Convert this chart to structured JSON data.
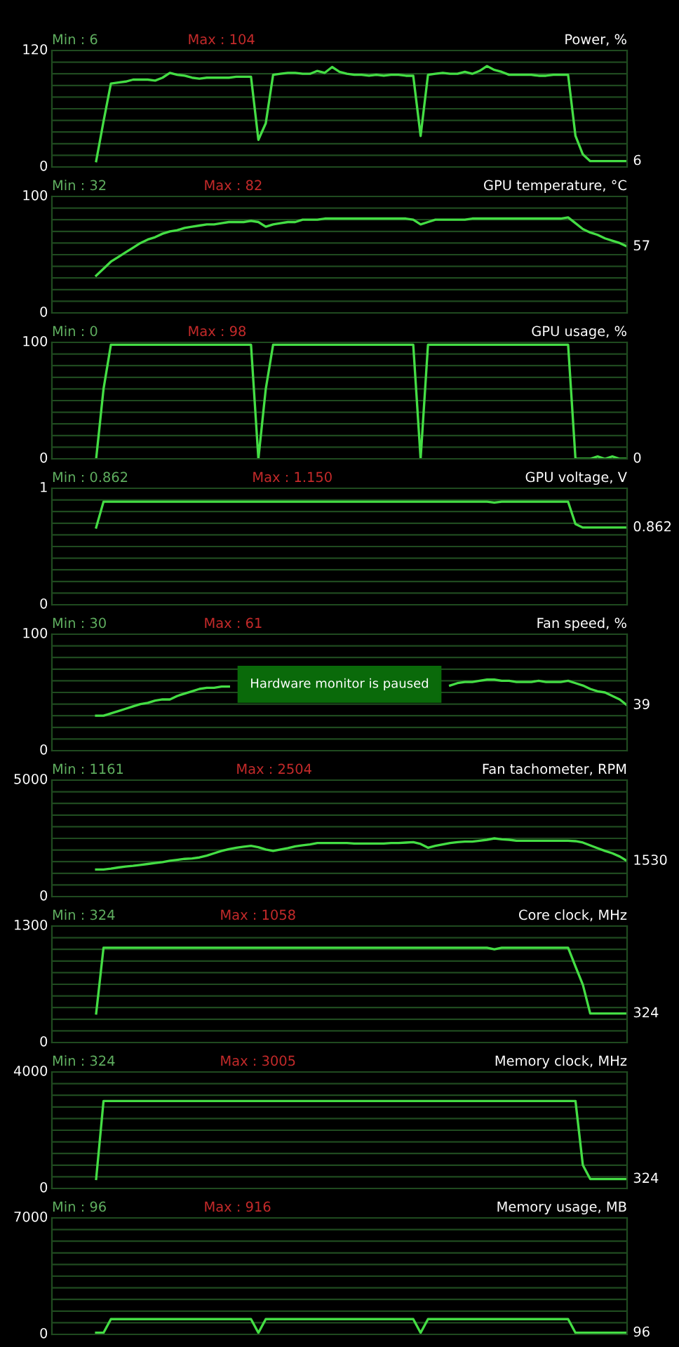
{
  "chart_data": [
    {
      "type": "line",
      "title": "Power, %",
      "tick_labels": "y",
      "grid": true,
      "categories": [
        null,
        null,
        null,
        null,
        null,
        null,
        null,
        null,
        null,
        null,
        null,
        null,
        null,
        null,
        null,
        null,
        null,
        null,
        null,
        null,
        null,
        null,
        null,
        null,
        null,
        null,
        null,
        null,
        null,
        null,
        null,
        null,
        null,
        null,
        null,
        null,
        null,
        null,
        null,
        null,
        null,
        null,
        null,
        null,
        null,
        null,
        null,
        null,
        null,
        null,
        null,
        null,
        null,
        null,
        null,
        null,
        null,
        null,
        null,
        null,
        null,
        null,
        null,
        null,
        null,
        null,
        null,
        null,
        null,
        null,
        null,
        null,
        null,
        null,
        null,
        null,
        null,
        null,
        null
      ],
      "series": [
        {
          "color": "#44dd44",
          "values": [
            null,
            null,
            null,
            null,
            null,
            null,
            6,
            47,
            86,
            87,
            88,
            90,
            90,
            90,
            89,
            92,
            97,
            95,
            94,
            92,
            91,
            92,
            92,
            92,
            92,
            93,
            93,
            93,
            28,
            45,
            95,
            96,
            97,
            97,
            96,
            96,
            99,
            97,
            103,
            98,
            96,
            95,
            95,
            94,
            95,
            94,
            95,
            95,
            94,
            94,
            32,
            95,
            96,
            97,
            96,
            96,
            98,
            96,
            99,
            104,
            100,
            98,
            95,
            95,
            95,
            95,
            94,
            94,
            95,
            95,
            95,
            32,
            13,
            6,
            6,
            6,
            6,
            6,
            6
          ]
        }
      ],
      "ylim": [
        0,
        120
      ],
      "yticks": [
        0,
        {
          "value": 12,
          "label": null
        },
        {
          "value": 24,
          "label": null
        },
        {
          "value": 36,
          "label": null
        },
        {
          "value": 48,
          "label": null
        },
        {
          "value": 60,
          "label": null
        },
        {
          "value": 72,
          "label": null
        },
        {
          "value": 84,
          "label": null
        },
        {
          "value": 96,
          "label": null
        },
        {
          "value": 108,
          "label": null
        },
        120
      ],
      "annotations": [
        "Min : 6",
        "Max : 104",
        "6"
      ]
    },
    {
      "type": "line",
      "title": "GPU temperature, °C",
      "tick_labels": "y",
      "grid": true,
      "categories": [
        null,
        null,
        null,
        null,
        null,
        null,
        null,
        null,
        null,
        null,
        null,
        null,
        null,
        null,
        null,
        null,
        null,
        null,
        null,
        null,
        null,
        null,
        null,
        null,
        null,
        null,
        null,
        null,
        null,
        null,
        null,
        null,
        null,
        null,
        null,
        null,
        null,
        null,
        null,
        null,
        null,
        null,
        null,
        null,
        null,
        null,
        null,
        null,
        null,
        null,
        null,
        null,
        null,
        null,
        null,
        null,
        null,
        null,
        null,
        null,
        null,
        null,
        null,
        null,
        null,
        null,
        null,
        null,
        null,
        null,
        null,
        null,
        null,
        null,
        null,
        null,
        null,
        null,
        null
      ],
      "series": [
        {
          "color": "#44dd44",
          "values": [
            null,
            null,
            null,
            null,
            null,
            null,
            32,
            38,
            44,
            48,
            52,
            56,
            60,
            63,
            65,
            68,
            70,
            71,
            73,
            74,
            75,
            76,
            76,
            77,
            78,
            78,
            78,
            79,
            78,
            74,
            76,
            77,
            78,
            78,
            80,
            80,
            80,
            81,
            81,
            81,
            81,
            81,
            81,
            81,
            81,
            81,
            81,
            81,
            81,
            80,
            76,
            78,
            80,
            80,
            80,
            80,
            80,
            81,
            81,
            81,
            81,
            81,
            81,
            81,
            81,
            81,
            81,
            81,
            81,
            81,
            82,
            77,
            72,
            69,
            67,
            64,
            62,
            60,
            57
          ]
        }
      ],
      "ylim": [
        0,
        100
      ],
      "yticks": [
        0,
        {
          "value": 10,
          "label": null
        },
        {
          "value": 20,
          "label": null
        },
        {
          "value": 30,
          "label": null
        },
        {
          "value": 40,
          "label": null
        },
        {
          "value": 50,
          "label": null
        },
        {
          "value": 60,
          "label": null
        },
        {
          "value": 70,
          "label": null
        },
        {
          "value": 80,
          "label": null
        },
        {
          "value": 90,
          "label": null
        },
        100
      ],
      "annotations": [
        "Min : 32",
        "Max : 82",
        "57"
      ]
    },
    {
      "type": "line",
      "title": "GPU usage, %",
      "tick_labels": "y",
      "grid": true,
      "categories": [
        null,
        null,
        null,
        null,
        null,
        null,
        null,
        null,
        null,
        null,
        null,
        null,
        null,
        null,
        null,
        null,
        null,
        null,
        null,
        null,
        null,
        null,
        null,
        null,
        null,
        null,
        null,
        null,
        null,
        null,
        null,
        null,
        null,
        null,
        null,
        null,
        null,
        null,
        null,
        null,
        null,
        null,
        null,
        null,
        null,
        null,
        null,
        null,
        null,
        null,
        null,
        null,
        null,
        null,
        null,
        null,
        null,
        null,
        null,
        null,
        null,
        null,
        null,
        null,
        null,
        null,
        null,
        null,
        null,
        null,
        null,
        null,
        null,
        null,
        null,
        null,
        null,
        null,
        null
      ],
      "series": [
        {
          "color": "#44dd44",
          "values": [
            null,
            null,
            null,
            null,
            null,
            null,
            0,
            60,
            98,
            98,
            98,
            98,
            98,
            98,
            98,
            98,
            98,
            98,
            98,
            98,
            98,
            98,
            98,
            98,
            98,
            98,
            98,
            98,
            0,
            60,
            98,
            98,
            98,
            98,
            98,
            98,
            98,
            98,
            98,
            98,
            98,
            98,
            98,
            98,
            98,
            98,
            98,
            98,
            98,
            98,
            0,
            98,
            98,
            98,
            98,
            98,
            98,
            98,
            98,
            98,
            98,
            98,
            98,
            98,
            98,
            98,
            98,
            98,
            98,
            98,
            98,
            0,
            0,
            0,
            2,
            0,
            2,
            0,
            0
          ]
        }
      ],
      "ylim": [
        0,
        100
      ],
      "yticks": [
        0,
        {
          "value": 10,
          "label": null
        },
        {
          "value": 20,
          "label": null
        },
        {
          "value": 30,
          "label": null
        },
        {
          "value": 40,
          "label": null
        },
        {
          "value": 50,
          "label": null
        },
        {
          "value": 60,
          "label": null
        },
        {
          "value": 70,
          "label": null
        },
        {
          "value": 80,
          "label": null
        },
        {
          "value": 90,
          "label": null
        },
        100
      ],
      "annotations": [
        "Min : 0",
        "Max : 98",
        "0"
      ]
    },
    {
      "type": "line",
      "title": "GPU voltage, V",
      "tick_labels": "y",
      "grid": true,
      "categories": [
        null,
        null,
        null,
        null,
        null,
        null,
        null,
        null,
        null,
        null,
        null,
        null,
        null,
        null,
        null,
        null,
        null,
        null,
        null,
        null,
        null,
        null,
        null,
        null,
        null,
        null,
        null,
        null,
        null,
        null,
        null,
        null,
        null,
        null,
        null,
        null,
        null,
        null,
        null,
        null,
        null,
        null,
        null,
        null,
        null,
        null,
        null,
        null,
        null,
        null,
        null,
        null,
        null,
        null,
        null,
        null,
        null,
        null,
        null,
        null,
        null,
        null,
        null,
        null,
        null,
        null,
        null,
        null,
        null,
        null,
        null,
        null,
        null,
        null,
        null,
        null,
        null,
        null,
        null
      ],
      "series": [
        {
          "color": "#44dd44",
          "values": [
            null,
            null,
            null,
            null,
            null,
            null,
            0.862,
            1.15,
            1.15,
            1.15,
            1.15,
            1.15,
            1.15,
            1.15,
            1.15,
            1.15,
            1.15,
            1.15,
            1.15,
            1.15,
            1.15,
            1.15,
            1.15,
            1.15,
            1.15,
            1.15,
            1.15,
            1.15,
            1.15,
            1.15,
            1.15,
            1.15,
            1.15,
            1.15,
            1.15,
            1.15,
            1.15,
            1.15,
            1.15,
            1.15,
            1.15,
            1.15,
            1.15,
            1.15,
            1.15,
            1.15,
            1.15,
            1.15,
            1.15,
            1.15,
            1.15,
            1.15,
            1.15,
            1.15,
            1.15,
            1.15,
            1.15,
            1.15,
            1.15,
            1.15,
            1.14,
            1.15,
            1.15,
            1.15,
            1.15,
            1.15,
            1.15,
            1.15,
            1.15,
            1.15,
            1.15,
            0.9,
            0.862,
            0.862,
            0.862,
            0.862,
            0.862,
            0.862,
            0.862
          ]
        }
      ],
      "ylim": [
        0,
        1.3
      ],
      "yticks": [
        0,
        {
          "value": 0.13,
          "label": null
        },
        {
          "value": 0.26,
          "label": null
        },
        {
          "value": 0.39,
          "label": null
        },
        {
          "value": 0.52,
          "label": null
        },
        {
          "value": 0.65,
          "label": null
        },
        {
          "value": 0.78,
          "label": null
        },
        {
          "value": 0.91,
          "label": null
        },
        {
          "value": 1.04,
          "label": null
        },
        {
          "value": 1.17,
          "label": null
        },
        {
          "value": 1.3,
          "label": "1"
        }
      ],
      "annotations": [
        "Min : 0.862",
        "Max : 1.150",
        "0.862"
      ]
    },
    {
      "type": "line",
      "title": "Fan speed, %",
      "tick_labels": "y",
      "grid": true,
      "categories": [
        null,
        null,
        null,
        null,
        null,
        null,
        null,
        null,
        null,
        null,
        null,
        null,
        null,
        null,
        null,
        null,
        null,
        null,
        null,
        null,
        null,
        null,
        null,
        null,
        null,
        null,
        null,
        null,
        null,
        null,
        null,
        null,
        null,
        null,
        null,
        null,
        null,
        null,
        null,
        null,
        null,
        null,
        null,
        null,
        null,
        null,
        null,
        null,
        null,
        null,
        null,
        null,
        null,
        null,
        null,
        null,
        null,
        null,
        null,
        null,
        null,
        null,
        null,
        null,
        null,
        null,
        null,
        null,
        null,
        null,
        null,
        null,
        null,
        null,
        null,
        null,
        null,
        null,
        null
      ],
      "series": [
        {
          "color": "#44dd44",
          "values": [
            null,
            null,
            null,
            null,
            null,
            null,
            30,
            30,
            32,
            34,
            36,
            38,
            40,
            41,
            43,
            44,
            44,
            47,
            49,
            51,
            53,
            54,
            54,
            55,
            55,
            null,
            null,
            null,
            null,
            null,
            null,
            null,
            null,
            null,
            null,
            null,
            null,
            null,
            null,
            null,
            null,
            null,
            null,
            null,
            null,
            null,
            null,
            null,
            null,
            null,
            null,
            null,
            null,
            null,
            56,
            58,
            59,
            59,
            60,
            61,
            61,
            60,
            60,
            59,
            59,
            59,
            60,
            59,
            59,
            59,
            60,
            58,
            56,
            53,
            51,
            50,
            47,
            44,
            39
          ]
        }
      ],
      "ylim": [
        0,
        100
      ],
      "yticks": [
        0,
        {
          "value": 10,
          "label": null
        },
        {
          "value": 20,
          "label": null
        },
        {
          "value": 30,
          "label": null
        },
        {
          "value": 40,
          "label": null
        },
        {
          "value": 50,
          "label": null
        },
        {
          "value": 60,
          "label": null
        },
        {
          "value": 70,
          "label": null
        },
        {
          "value": 80,
          "label": null
        },
        {
          "value": 90,
          "label": null
        },
        100
      ],
      "annotations": [
        "Min : 30",
        "Max : 61",
        "39",
        "Hardware monitor is paused"
      ]
    },
    {
      "type": "line",
      "title": "Fan tachometer, RPM",
      "tick_labels": "y",
      "grid": true,
      "categories": [
        null,
        null,
        null,
        null,
        null,
        null,
        null,
        null,
        null,
        null,
        null,
        null,
        null,
        null,
        null,
        null,
        null,
        null,
        null,
        null,
        null,
        null,
        null,
        null,
        null,
        null,
        null,
        null,
        null,
        null,
        null,
        null,
        null,
        null,
        null,
        null,
        null,
        null,
        null,
        null,
        null,
        null,
        null,
        null,
        null,
        null,
        null,
        null,
        null,
        null,
        null,
        null,
        null,
        null,
        null,
        null,
        null,
        null,
        null,
        null,
        null,
        null,
        null,
        null,
        null,
        null,
        null,
        null,
        null,
        null,
        null,
        null,
        null,
        null,
        null,
        null,
        null,
        null,
        null
      ],
      "series": [
        {
          "color": "#44dd44",
          "values": [
            null,
            null,
            null,
            null,
            null,
            null,
            1161,
            1161,
            1200,
            1250,
            1290,
            1320,
            1360,
            1400,
            1440,
            1480,
            1540,
            1580,
            1620,
            1640,
            1680,
            1760,
            1860,
            1960,
            2040,
            2100,
            2140,
            2180,
            2120,
            2020,
            1960,
            2020,
            2080,
            2160,
            2200,
            2240,
            2300,
            2300,
            2300,
            2300,
            2300,
            2280,
            2280,
            2280,
            2280,
            2280,
            2300,
            2300,
            2320,
            2340,
            2260,
            2100,
            2180,
            2240,
            2300,
            2340,
            2360,
            2360,
            2400,
            2440,
            2500,
            2460,
            2440,
            2400,
            2400,
            2400,
            2400,
            2400,
            2400,
            2400,
            2400,
            2380,
            2320,
            2200,
            2080,
            1960,
            1860,
            1720,
            1530
          ]
        }
      ],
      "ylim": [
        0,
        5000
      ],
      "yticks": [
        0,
        {
          "value": 500,
          "label": null
        },
        {
          "value": 1000,
          "label": null
        },
        {
          "value": 1500,
          "label": null
        },
        {
          "value": 2000,
          "label": null
        },
        {
          "value": 2500,
          "label": null
        },
        {
          "value": 3000,
          "label": null
        },
        {
          "value": 3500,
          "label": null
        },
        {
          "value": 4000,
          "label": null
        },
        {
          "value": 4500,
          "label": null
        },
        5000
      ],
      "annotations": [
        "Min : 1161",
        "Max : 2504",
        "1530"
      ]
    },
    {
      "type": "line",
      "title": "Core clock, MHz",
      "tick_labels": "y",
      "grid": true,
      "categories": [
        null,
        null,
        null,
        null,
        null,
        null,
        null,
        null,
        null,
        null,
        null,
        null,
        null,
        null,
        null,
        null,
        null,
        null,
        null,
        null,
        null,
        null,
        null,
        null,
        null,
        null,
        null,
        null,
        null,
        null,
        null,
        null,
        null,
        null,
        null,
        null,
        null,
        null,
        null,
        null,
        null,
        null,
        null,
        null,
        null,
        null,
        null,
        null,
        null,
        null,
        null,
        null,
        null,
        null,
        null,
        null,
        null,
        null,
        null,
        null,
        null,
        null,
        null,
        null,
        null,
        null,
        null,
        null,
        null,
        null,
        null,
        null,
        null,
        null,
        null,
        null,
        null,
        null,
        null
      ],
      "series": [
        {
          "color": "#44dd44",
          "values": [
            null,
            null,
            null,
            null,
            null,
            null,
            324,
            1058,
            1058,
            1058,
            1058,
            1058,
            1058,
            1058,
            1058,
            1058,
            1058,
            1058,
            1058,
            1058,
            1058,
            1058,
            1058,
            1058,
            1058,
            1058,
            1058,
            1058,
            1058,
            1058,
            1058,
            1058,
            1058,
            1058,
            1058,
            1058,
            1058,
            1058,
            1058,
            1058,
            1058,
            1058,
            1058,
            1058,
            1058,
            1058,
            1058,
            1058,
            1058,
            1058,
            1058,
            1058,
            1058,
            1058,
            1058,
            1058,
            1058,
            1058,
            1058,
            1058,
            1040,
            1058,
            1058,
            1058,
            1058,
            1058,
            1058,
            1058,
            1058,
            1058,
            1058,
            848,
            645,
            324,
            324,
            324,
            324,
            324,
            324
          ]
        }
      ],
      "ylim": [
        0,
        1300
      ],
      "yticks": [
        0,
        {
          "value": 130,
          "label": null
        },
        {
          "value": 260,
          "label": null
        },
        {
          "value": 390,
          "label": null
        },
        {
          "value": 520,
          "label": null
        },
        {
          "value": 650,
          "label": null
        },
        {
          "value": 780,
          "label": null
        },
        {
          "value": 910,
          "label": null
        },
        {
          "value": 1040,
          "label": null
        },
        {
          "value": 1170,
          "label": null
        },
        1300
      ],
      "annotations": [
        "Min : 324",
        "Max : 1058",
        "324"
      ]
    },
    {
      "type": "line",
      "title": "Memory clock, MHz",
      "tick_labels": "y",
      "grid": true,
      "categories": [
        null,
        null,
        null,
        null,
        null,
        null,
        null,
        null,
        null,
        null,
        null,
        null,
        null,
        null,
        null,
        null,
        null,
        null,
        null,
        null,
        null,
        null,
        null,
        null,
        null,
        null,
        null,
        null,
        null,
        null,
        null,
        null,
        null,
        null,
        null,
        null,
        null,
        null,
        null,
        null,
        null,
        null,
        null,
        null,
        null,
        null,
        null,
        null,
        null,
        null,
        null,
        null,
        null,
        null,
        null,
        null,
        null,
        null,
        null,
        null,
        null,
        null,
        null,
        null,
        null,
        null,
        null,
        null,
        null,
        null,
        null,
        null,
        null,
        null,
        null,
        null,
        null,
        null,
        null
      ],
      "series": [
        {
          "color": "#44dd44",
          "values": [
            null,
            null,
            null,
            null,
            null,
            null,
            324,
            3005,
            3005,
            3005,
            3005,
            3005,
            3005,
            3005,
            3005,
            3005,
            3005,
            3005,
            3005,
            3005,
            3005,
            3005,
            3005,
            3005,
            3005,
            3005,
            3005,
            3005,
            3005,
            3005,
            3005,
            3005,
            3005,
            3005,
            3005,
            3005,
            3005,
            3005,
            3005,
            3005,
            3005,
            3005,
            3005,
            3005,
            3005,
            3005,
            3005,
            3005,
            3005,
            3005,
            3005,
            3005,
            3005,
            3005,
            3005,
            3005,
            3005,
            3005,
            3005,
            3005,
            3005,
            3005,
            3005,
            3005,
            3005,
            3005,
            3005,
            3005,
            3005,
            3005,
            3005,
            3005,
            800,
            324,
            324,
            324,
            324,
            324,
            324
          ]
        }
      ],
      "ylim": [
        0,
        4000
      ],
      "yticks": [
        0,
        {
          "value": 400,
          "label": null
        },
        {
          "value": 800,
          "label": null
        },
        {
          "value": 1200,
          "label": null
        },
        {
          "value": 1600,
          "label": null
        },
        {
          "value": 2000,
          "label": null
        },
        {
          "value": 2400,
          "label": null
        },
        {
          "value": 2800,
          "label": null
        },
        {
          "value": 3200,
          "label": null
        },
        {
          "value": 3600,
          "label": null
        },
        4000
      ],
      "annotations": [
        "Min : 324",
        "Max : 3005",
        "324"
      ]
    },
    {
      "type": "line",
      "title": "Memory usage, MB",
      "tick_labels": "y",
      "grid": true,
      "categories": [
        null,
        null,
        null,
        null,
        null,
        null,
        null,
        null,
        null,
        null,
        null,
        null,
        null,
        null,
        null,
        null,
        null,
        null,
        null,
        null,
        null,
        null,
        null,
        null,
        null,
        null,
        null,
        null,
        null,
        null,
        null,
        null,
        null,
        null,
        null,
        null,
        null,
        null,
        null,
        null,
        null,
        null,
        null,
        null,
        null,
        null,
        null,
        null,
        null,
        null,
        null,
        null,
        null,
        null,
        null,
        null,
        null,
        null,
        null,
        null,
        null,
        null,
        null,
        null,
        null,
        null,
        null,
        null,
        null,
        null,
        null,
        null,
        null,
        null,
        null,
        null,
        null,
        null,
        null
      ],
      "series": [
        {
          "color": "#44dd44",
          "values": [
            null,
            null,
            null,
            null,
            null,
            null,
            96,
            96,
            916,
            916,
            916,
            916,
            916,
            916,
            916,
            916,
            916,
            916,
            916,
            916,
            916,
            916,
            916,
            916,
            916,
            916,
            916,
            916,
            96,
            916,
            916,
            916,
            916,
            916,
            916,
            916,
            916,
            916,
            916,
            916,
            916,
            916,
            916,
            916,
            916,
            916,
            916,
            916,
            916,
            916,
            96,
            916,
            916,
            916,
            916,
            916,
            916,
            916,
            916,
            916,
            916,
            916,
            916,
            916,
            916,
            916,
            916,
            916,
            916,
            916,
            916,
            96,
            96,
            96,
            96,
            96,
            96,
            96,
            96
          ]
        }
      ],
      "ylim": [
        0,
        7000
      ],
      "yticks": [
        0,
        {
          "value": 700,
          "label": null
        },
        {
          "value": 1400,
          "label": null
        },
        {
          "value": 2100,
          "label": null
        },
        {
          "value": 2800,
          "label": null
        },
        {
          "value": 3500,
          "label": null
        },
        {
          "value": 4200,
          "label": null
        },
        {
          "value": 4900,
          "label": null
        },
        {
          "value": 5600,
          "label": null
        },
        {
          "value": 6300,
          "label": null
        },
        7000
      ],
      "annotations": [
        "Min : 96",
        "Max : 916",
        "96"
      ]
    }
  ]
}
